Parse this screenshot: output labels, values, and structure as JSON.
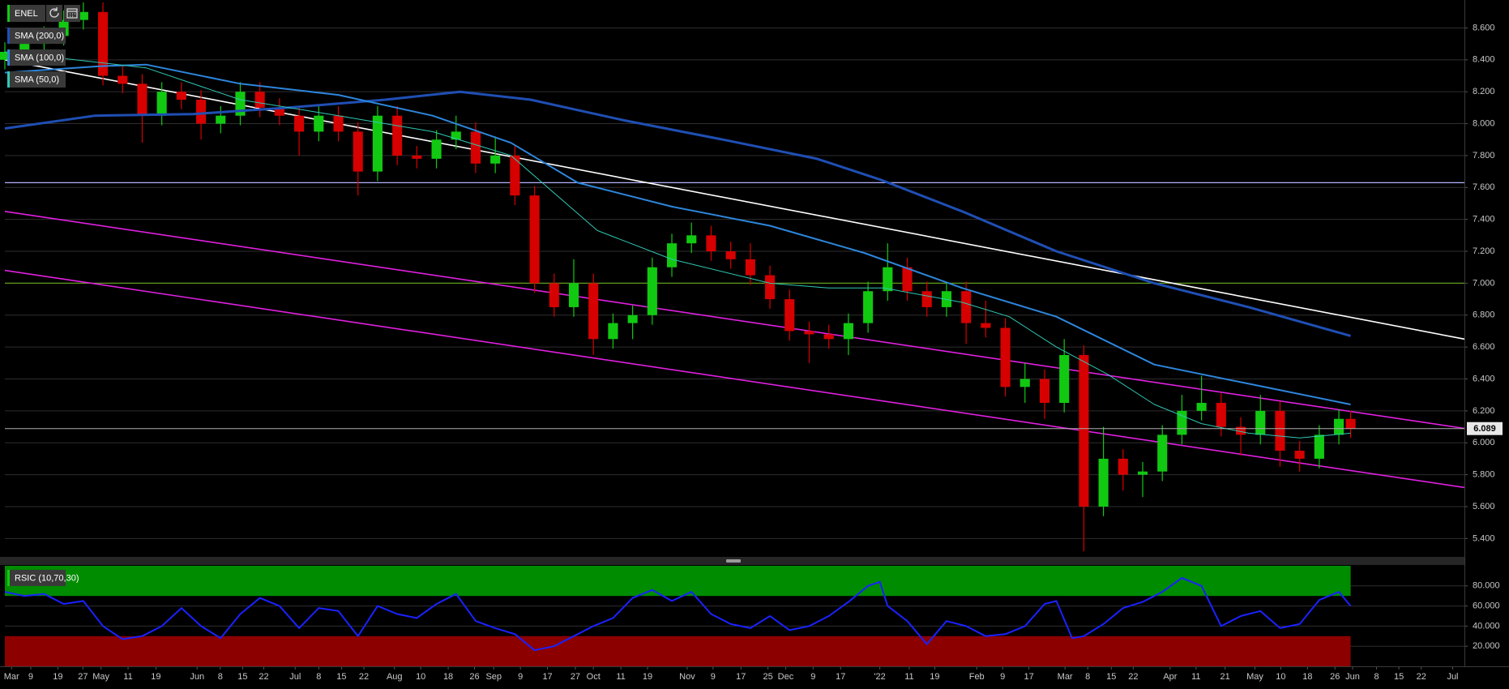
{
  "toolbar": {
    "symbol": "ENEL"
  },
  "chart_data": [
    {
      "type": "candlestick",
      "up_color": "#12c912",
      "down_color": "#d60000",
      "grid": true,
      "xlim": [
        0,
        372
      ],
      "ylim": [
        5.29,
        8.775
      ],
      "yticks": [
        {
          "value": 5.4,
          "label": "5.400"
        },
        {
          "value": 5.6,
          "label": "5.600"
        },
        {
          "value": 5.8,
          "label": "5.800"
        },
        {
          "value": 6.0,
          "label": "6.000"
        },
        {
          "value": 6.2,
          "label": "6.200"
        },
        {
          "value": 6.4,
          "label": "6.400"
        },
        {
          "value": 6.6,
          "label": "6.600"
        },
        {
          "value": 6.8,
          "label": "6.800"
        },
        {
          "value": 7.0,
          "label": "7.000"
        },
        {
          "value": 7.2,
          "label": "7.200"
        },
        {
          "value": 7.4,
          "label": "7.400"
        },
        {
          "value": 7.6,
          "label": "7.600"
        },
        {
          "value": 7.8,
          "label": "7.800"
        },
        {
          "value": 8.0,
          "label": "8.000"
        },
        {
          "value": 8.2,
          "label": "8.200"
        },
        {
          "value": 8.4,
          "label": "8.400"
        },
        {
          "value": 8.6,
          "label": "8.600"
        }
      ],
      "xticks": [
        {
          "value": 1.7,
          "label": "Mar"
        },
        {
          "value": 6.6,
          "label": "9"
        },
        {
          "value": 13.5,
          "label": "19"
        },
        {
          "value": 19.9,
          "label": "27"
        },
        {
          "value": 24.5,
          "label": "May"
        },
        {
          "value": 31.4,
          "label": "11"
        },
        {
          "value": 38.5,
          "label": "19"
        },
        {
          "value": 49,
          "label": "Jun"
        },
        {
          "value": 54.9,
          "label": "8"
        },
        {
          "value": 60.6,
          "label": "15"
        },
        {
          "value": 66,
          "label": "22"
        },
        {
          "value": 74,
          "label": "Jul"
        },
        {
          "value": 80,
          "label": "8"
        },
        {
          "value": 85.8,
          "label": "15"
        },
        {
          "value": 91.5,
          "label": "22"
        },
        {
          "value": 99.3,
          "label": "Aug"
        },
        {
          "value": 106,
          "label": "10"
        },
        {
          "value": 113,
          "label": "18"
        },
        {
          "value": 119.7,
          "label": "26"
        },
        {
          "value": 124.6,
          "label": "Sep"
        },
        {
          "value": 131.4,
          "label": "9"
        },
        {
          "value": 138.3,
          "label": "17"
        },
        {
          "value": 145.4,
          "label": "27"
        },
        {
          "value": 150,
          "label": "Oct"
        },
        {
          "value": 157,
          "label": "11"
        },
        {
          "value": 163.8,
          "label": "19"
        },
        {
          "value": 173.9,
          "label": "Nov"
        },
        {
          "value": 180.5,
          "label": "9"
        },
        {
          "value": 187.6,
          "label": "17"
        },
        {
          "value": 194.5,
          "label": "25"
        },
        {
          "value": 199,
          "label": "Dec"
        },
        {
          "value": 206,
          "label": "9"
        },
        {
          "value": 213,
          "label": "17"
        },
        {
          "value": 223,
          "label": "'22"
        },
        {
          "value": 230.5,
          "label": "11"
        },
        {
          "value": 237,
          "label": "19"
        },
        {
          "value": 247.7,
          "label": "Feb"
        },
        {
          "value": 254.3,
          "label": "9"
        },
        {
          "value": 261,
          "label": "17"
        },
        {
          "value": 270.2,
          "label": "Mar"
        },
        {
          "value": 276,
          "label": "8"
        },
        {
          "value": 282,
          "label": "15"
        },
        {
          "value": 287.6,
          "label": "22"
        },
        {
          "value": 297,
          "label": "Apr"
        },
        {
          "value": 303.6,
          "label": "11"
        },
        {
          "value": 311,
          "label": "21"
        },
        {
          "value": 318.6,
          "label": "May"
        },
        {
          "value": 325.2,
          "label": "10"
        },
        {
          "value": 332,
          "label": "18"
        },
        {
          "value": 339,
          "label": "26"
        },
        {
          "value": 343.5,
          "label": "Jun"
        },
        {
          "value": 349.6,
          "label": "8"
        },
        {
          "value": 355.3,
          "label": "15"
        },
        {
          "value": 361,
          "label": "22"
        },
        {
          "value": 369,
          "label": "Jul"
        }
      ],
      "x": [
        0,
        5,
        10,
        15,
        20,
        25,
        30,
        35,
        40,
        45,
        50,
        55,
        60,
        65,
        70,
        75,
        80,
        85,
        90,
        95,
        100,
        105,
        110,
        115,
        120,
        125,
        130,
        135,
        140,
        145,
        150,
        155,
        160,
        165,
        170,
        175,
        180,
        185,
        190,
        195,
        200,
        205,
        210,
        215,
        220,
        225,
        230,
        235,
        240,
        245,
        250,
        255,
        260,
        265,
        270,
        275,
        280,
        285,
        290,
        295,
        300,
        305,
        310,
        315,
        320,
        325,
        330,
        335,
        340,
        343
      ],
      "open": [
        8.4,
        8.45,
        8.5,
        8.55,
        8.65,
        8.7,
        8.3,
        8.25,
        8.05,
        8.2,
        8.15,
        8.0,
        8.05,
        8.2,
        8.1,
        8.05,
        7.95,
        8.05,
        7.95,
        7.7,
        8.05,
        7.8,
        7.78,
        7.9,
        7.95,
        7.75,
        7.8,
        7.55,
        7.0,
        6.85,
        7.0,
        6.65,
        6.75,
        6.8,
        7.1,
        7.25,
        7.3,
        7.2,
        7.15,
        7.05,
        6.9,
        6.7,
        6.68,
        6.65,
        6.75,
        6.95,
        7.1,
        6.95,
        6.85,
        6.95,
        6.75,
        6.72,
        6.35,
        6.4,
        6.25,
        6.55,
        5.6,
        5.9,
        5.8,
        5.82,
        6.05,
        6.2,
        6.25,
        6.1,
        6.05,
        6.2,
        5.95,
        5.9,
        6.05,
        6.15
      ],
      "high": [
        8.51,
        8.56,
        8.61,
        8.71,
        8.76,
        8.76,
        8.36,
        8.31,
        8.26,
        8.26,
        8.21,
        8.11,
        8.26,
        8.26,
        8.16,
        8.11,
        8.11,
        8.11,
        8.01,
        8.11,
        8.11,
        7.86,
        7.96,
        8.05,
        8.01,
        7.92,
        7.86,
        7.61,
        7.06,
        7.15,
        7.06,
        6.81,
        6.86,
        7.16,
        7.31,
        7.38,
        7.36,
        7.26,
        7.25,
        7.11,
        6.96,
        6.76,
        6.74,
        6.81,
        7.01,
        7.25,
        7.16,
        7.01,
        7.01,
        7.01,
        6.89,
        6.78,
        6.5,
        6.46,
        6.65,
        6.61,
        6.1,
        5.96,
        5.88,
        6.11,
        6.3,
        6.42,
        6.31,
        6.16,
        6.3,
        6.26,
        6.01,
        6.11,
        6.21,
        6.2
      ],
      "low": [
        8.34,
        8.39,
        8.44,
        8.49,
        8.59,
        8.24,
        8.19,
        7.88,
        7.99,
        8.09,
        7.9,
        7.94,
        7.99,
        8.04,
        7.99,
        7.8,
        7.89,
        7.89,
        7.55,
        7.64,
        7.74,
        7.72,
        7.72,
        7.84,
        7.69,
        7.69,
        7.49,
        6.94,
        6.79,
        6.79,
        6.55,
        6.59,
        6.65,
        6.74,
        7.04,
        7.19,
        7.14,
        7.09,
        6.99,
        6.84,
        6.64,
        6.5,
        6.59,
        6.55,
        6.69,
        6.89,
        6.89,
        6.79,
        6.79,
        6.62,
        6.66,
        6.29,
        6.25,
        6.15,
        6.19,
        5.32,
        5.54,
        5.7,
        5.66,
        5.76,
        5.99,
        6.14,
        6.04,
        5.92,
        5.99,
        5.85,
        5.82,
        5.84,
        5.99,
        6.03
      ],
      "close": [
        8.45,
        8.5,
        8.55,
        8.65,
        8.7,
        8.3,
        8.25,
        8.05,
        8.2,
        8.15,
        8.0,
        8.05,
        8.2,
        8.1,
        8.05,
        7.95,
        8.05,
        7.95,
        7.7,
        8.05,
        7.8,
        7.78,
        7.9,
        7.95,
        7.75,
        7.8,
        7.55,
        7.0,
        6.85,
        7.0,
        6.65,
        6.75,
        6.8,
        7.1,
        7.25,
        7.3,
        7.2,
        7.15,
        7.05,
        6.9,
        6.7,
        6.68,
        6.65,
        6.75,
        6.95,
        7.1,
        6.95,
        6.85,
        6.95,
        6.75,
        6.72,
        6.35,
        6.4,
        6.25,
        6.55,
        5.6,
        5.9,
        5.8,
        5.82,
        6.05,
        6.2,
        6.25,
        6.1,
        6.05,
        6.2,
        5.95,
        5.9,
        6.05,
        6.15,
        6.089
      ],
      "last_price": {
        "value": 6.089,
        "label": "6.089"
      },
      "series": [
        {
          "name": "SMA (200,0)",
          "color": "#1f4fb4",
          "width": 3,
          "x": [
            0,
            23,
            48,
            72,
            97,
            116,
            134,
            158,
            183,
            207,
            223,
            244,
            268,
            293,
            317,
            343
          ],
          "values": [
            7.97,
            8.05,
            8.06,
            8.1,
            8.15,
            8.2,
            8.15,
            8.02,
            7.9,
            7.78,
            7.65,
            7.45,
            7.2,
            7.0,
            6.85,
            6.67
          ]
        },
        {
          "name": "SMA (100,0)",
          "color": "#2d86dc",
          "width": 2,
          "x": [
            0,
            24,
            36,
            60,
            85,
            109,
            129,
            146,
            170,
            195,
            219,
            244,
            268,
            293,
            317,
            343
          ],
          "values": [
            8.32,
            8.36,
            8.37,
            8.25,
            8.18,
            8.05,
            7.88,
            7.63,
            7.48,
            7.36,
            7.19,
            6.97,
            6.79,
            6.49,
            6.37,
            6.24
          ]
        },
        {
          "name": "SMA (50,0)",
          "color": "#30c8b4",
          "width": 1,
          "x": [
            0,
            36,
            60,
            85,
            109,
            129,
            151,
            170,
            195,
            210,
            224,
            244,
            256,
            268,
            281,
            293,
            305,
            317,
            330,
            343
          ],
          "values": [
            8.45,
            8.35,
            8.15,
            8.05,
            7.95,
            7.8,
            7.33,
            7.15,
            7.0,
            6.97,
            6.97,
            6.88,
            6.79,
            6.6,
            6.43,
            6.24,
            6.12,
            6.06,
            6.03,
            6.06
          ]
        }
      ],
      "trendlines": [
        {
          "color": "#ffffff",
          "x": [
            0,
            372
          ],
          "values": [
            8.4,
            6.65
          ]
        },
        {
          "color": "#e020e0",
          "x": [
            0,
            372
          ],
          "values": [
            7.45,
            6.09
          ]
        },
        {
          "color": "#e020e0",
          "x": [
            0,
            372
          ],
          "values": [
            7.08,
            5.72
          ]
        }
      ],
      "hlines": [
        {
          "value": 7.63,
          "color": "#b4b4ff"
        },
        {
          "value": 7.0,
          "color": "#5f9a1e"
        }
      ]
    },
    {
      "type": "line",
      "xlim": [
        0,
        372
      ],
      "ylim": [
        0,
        100
      ],
      "grid": true,
      "yticks": [
        {
          "value": 20,
          "label": "20.000"
        },
        {
          "value": 40,
          "label": "40.000"
        },
        {
          "value": 60,
          "label": "60.000"
        },
        {
          "value": 80,
          "label": "80.000"
        }
      ],
      "bands": [
        {
          "range": [
            70,
            100
          ],
          "x": [
            0,
            343
          ],
          "color": "#008c00"
        },
        {
          "range": [
            0,
            30
          ],
          "x": [
            0,
            343
          ],
          "color": "#8c0000"
        }
      ],
      "series": [
        {
          "name": "RSIC (10,70,30)",
          "color": "#1a22ff",
          "width": 2,
          "x": [
            0,
            5,
            10,
            15,
            20,
            25,
            30,
            35,
            40,
            45,
            50,
            55,
            60,
            65,
            70,
            75,
            80,
            85,
            90,
            95,
            100,
            105,
            110,
            115,
            120,
            125,
            130,
            135,
            140,
            145,
            150,
            155,
            160,
            165,
            170,
            175,
            180,
            185,
            190,
            195,
            200,
            205,
            210,
            215,
            220,
            223,
            225,
            230,
            235,
            240,
            245,
            250,
            255,
            260,
            265,
            268,
            272,
            275,
            280,
            285,
            290,
            295,
            300,
            305,
            310,
            315,
            320,
            325,
            330,
            335,
            340,
            343
          ],
          "values": [
            74,
            70,
            72,
            62,
            65,
            40,
            27,
            30,
            40,
            58,
            40,
            28,
            52,
            68,
            60,
            38,
            58,
            55,
            30,
            60,
            52,
            48,
            62,
            72,
            45,
            38,
            32,
            16,
            20,
            30,
            40,
            48,
            68,
            76,
            65,
            74,
            52,
            42,
            38,
            50,
            36,
            40,
            50,
            64,
            80,
            84,
            60,
            45,
            22,
            45,
            40,
            30,
            32,
            40,
            62,
            65,
            28,
            30,
            42,
            58,
            64,
            74,
            88,
            80,
            40,
            50,
            55,
            38,
            42,
            66,
            74,
            60
          ]
        }
      ]
    }
  ]
}
